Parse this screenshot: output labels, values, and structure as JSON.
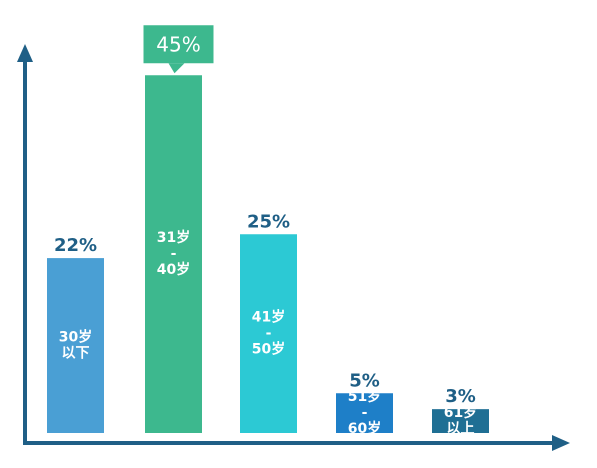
{
  "chart_data": {
    "type": "bar",
    "categories": [
      [
        "30岁",
        "以下"
      ],
      [
        "31岁",
        "-",
        "40岁"
      ],
      [
        "41岁",
        "-",
        "50岁"
      ],
      [
        "51岁",
        "-",
        "60岁"
      ],
      [
        "61岁",
        "以上"
      ]
    ],
    "values": [
      22,
      45,
      25,
      5,
      3
    ],
    "value_labels": [
      "22%",
      "45%",
      "25%",
      "5%",
      "3%"
    ],
    "bar_colors": [
      "#4a9fd4",
      "#3db88e",
      "#2cc9d4",
      "#1e7fc8",
      "#1f6f94"
    ],
    "highlighted_index": 1,
    "label_color": "#1f5f86",
    "axis_color": "#1f5f86",
    "category_label_color": "#ffffff",
    "ylim": [
      0,
      50
    ]
  }
}
